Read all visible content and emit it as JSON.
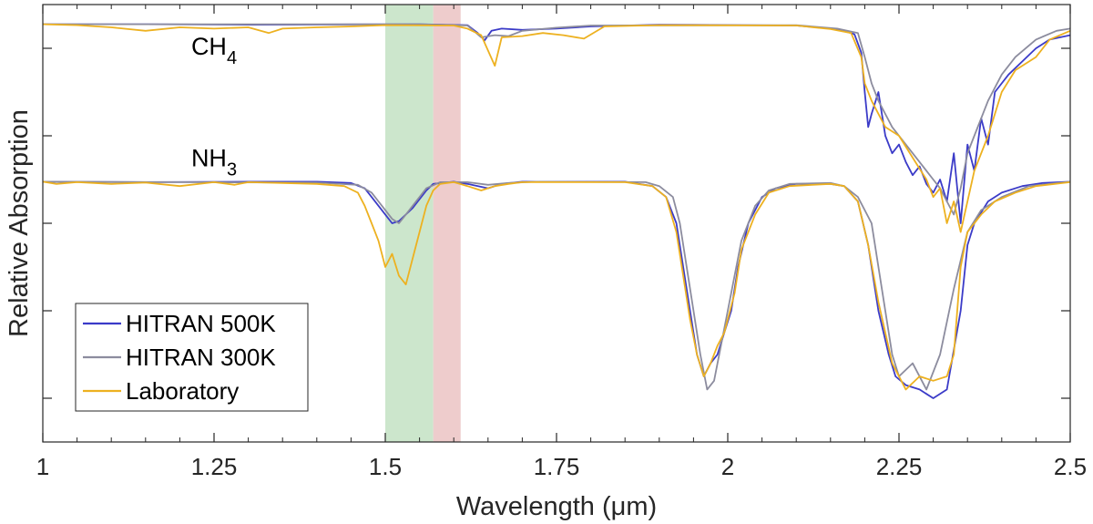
{
  "chart_data": {
    "type": "line",
    "xlabel": "Wavelength (μm)",
    "ylabel": "Relative Absorption",
    "xlim": [
      1.0,
      2.5
    ],
    "ylim": [
      0,
      1
    ],
    "x_ticks": [
      1,
      1.25,
      1.5,
      1.75,
      2,
      2.25,
      2.5
    ],
    "x_tick_labels": [
      "1",
      "1.25",
      "1.5",
      "1.75",
      "2",
      "2.25",
      "2.5"
    ],
    "y_ticks": [
      0.1,
      0.3,
      0.5,
      0.7,
      0.9
    ],
    "y_tick_labels": [
      "",
      "",
      "",
      "",
      ""
    ],
    "shaded_regions": [
      {
        "name": "green-band",
        "x_range": [
          1.5,
          1.57
        ],
        "color": "#cce6cc"
      },
      {
        "name": "red-band",
        "x_range": [
          1.57,
          1.61
        ],
        "color": "#eecccc"
      }
    ],
    "annotations": [
      {
        "name": "ch4",
        "base": "CH",
        "sub": "4",
        "x": 1.25,
        "y": 0.885
      },
      {
        "name": "nh3",
        "base": "NH",
        "sub": "3",
        "x": 1.25,
        "y": 0.63
      }
    ],
    "legend": {
      "position": "lower-left",
      "entries": [
        {
          "label": "HITRAN 500K",
          "color": "#3b3bc8"
        },
        {
          "label": "HITRAN 300K",
          "color": "#8c8c9e"
        },
        {
          "label": "Laboratory",
          "color": "#edb120"
        }
      ]
    },
    "series": [
      {
        "name": "CH4 HITRAN 500K",
        "group": "CH4",
        "color": "#3b3bc8",
        "points": [
          [
            1.0,
            0.955
          ],
          [
            1.15,
            0.955
          ],
          [
            1.3,
            0.954
          ],
          [
            1.55,
            0.955
          ],
          [
            1.62,
            0.953
          ],
          [
            1.635,
            0.935
          ],
          [
            1.645,
            0.918
          ],
          [
            1.655,
            0.94
          ],
          [
            1.67,
            0.945
          ],
          [
            1.7,
            0.942
          ],
          [
            1.75,
            0.945
          ],
          [
            1.8,
            0.95
          ],
          [
            1.9,
            0.954
          ],
          [
            2.1,
            0.952
          ],
          [
            2.15,
            0.945
          ],
          [
            2.17,
            0.94
          ],
          [
            2.185,
            0.932
          ],
          [
            2.195,
            0.89
          ],
          [
            2.2,
            0.8
          ],
          [
            2.205,
            0.72
          ],
          [
            2.21,
            0.75
          ],
          [
            2.22,
            0.8
          ],
          [
            2.23,
            0.7
          ],
          [
            2.24,
            0.66
          ],
          [
            2.25,
            0.68
          ],
          [
            2.26,
            0.64
          ],
          [
            2.27,
            0.61
          ],
          [
            2.28,
            0.63
          ],
          [
            2.29,
            0.59
          ],
          [
            2.3,
            0.57
          ],
          [
            2.31,
            0.6
          ],
          [
            2.32,
            0.55
          ],
          [
            2.33,
            0.66
          ],
          [
            2.34,
            0.5
          ],
          [
            2.35,
            0.68
          ],
          [
            2.36,
            0.62
          ],
          [
            2.37,
            0.74
          ],
          [
            2.38,
            0.68
          ],
          [
            2.39,
            0.8
          ],
          [
            2.41,
            0.84
          ],
          [
            2.43,
            0.87
          ],
          [
            2.45,
            0.9
          ],
          [
            2.47,
            0.92
          ],
          [
            2.5,
            0.93
          ]
        ]
      },
      {
        "name": "CH4 HITRAN 300K",
        "group": "CH4",
        "color": "#8c8c9e",
        "points": [
          [
            1.0,
            0.955
          ],
          [
            1.3,
            0.955
          ],
          [
            1.55,
            0.955
          ],
          [
            1.62,
            0.952
          ],
          [
            1.64,
            0.925
          ],
          [
            1.66,
            0.93
          ],
          [
            1.68,
            0.928
          ],
          [
            1.7,
            0.94
          ],
          [
            1.75,
            0.947
          ],
          [
            1.8,
            0.952
          ],
          [
            2.1,
            0.953
          ],
          [
            2.16,
            0.945
          ],
          [
            2.19,
            0.935
          ],
          [
            2.2,
            0.88
          ],
          [
            2.21,
            0.82
          ],
          [
            2.22,
            0.78
          ],
          [
            2.24,
            0.72
          ],
          [
            2.26,
            0.68
          ],
          [
            2.28,
            0.64
          ],
          [
            2.3,
            0.6
          ],
          [
            2.31,
            0.58
          ],
          [
            2.32,
            0.55
          ],
          [
            2.33,
            0.52
          ],
          [
            2.34,
            0.58
          ],
          [
            2.35,
            0.66
          ],
          [
            2.36,
            0.7
          ],
          [
            2.38,
            0.78
          ],
          [
            2.4,
            0.84
          ],
          [
            2.42,
            0.88
          ],
          [
            2.45,
            0.92
          ],
          [
            2.48,
            0.94
          ],
          [
            2.5,
            0.945
          ]
        ]
      },
      {
        "name": "CH4 Laboratory",
        "group": "CH4",
        "color": "#edb120",
        "points": [
          [
            1.0,
            0.955
          ],
          [
            1.05,
            0.953
          ],
          [
            1.1,
            0.948
          ],
          [
            1.15,
            0.94
          ],
          [
            1.2,
            0.948
          ],
          [
            1.25,
            0.945
          ],
          [
            1.3,
            0.948
          ],
          [
            1.33,
            0.935
          ],
          [
            1.35,
            0.945
          ],
          [
            1.4,
            0.948
          ],
          [
            1.45,
            0.95
          ],
          [
            1.5,
            0.953
          ],
          [
            1.6,
            0.952
          ],
          [
            1.62,
            0.945
          ],
          [
            1.64,
            0.93
          ],
          [
            1.66,
            0.86
          ],
          [
            1.67,
            0.925
          ],
          [
            1.7,
            0.928
          ],
          [
            1.73,
            0.935
          ],
          [
            1.76,
            0.93
          ],
          [
            1.79,
            0.922
          ],
          [
            1.82,
            0.95
          ],
          [
            1.9,
            0.953
          ],
          [
            2.1,
            0.952
          ],
          [
            2.15,
            0.944
          ],
          [
            2.18,
            0.935
          ],
          [
            2.195,
            0.88
          ],
          [
            2.2,
            0.82
          ],
          [
            2.21,
            0.78
          ],
          [
            2.23,
            0.72
          ],
          [
            2.25,
            0.7
          ],
          [
            2.27,
            0.65
          ],
          [
            2.29,
            0.6
          ],
          [
            2.3,
            0.56
          ],
          [
            2.31,
            0.58
          ],
          [
            2.32,
            0.5
          ],
          [
            2.33,
            0.55
          ],
          [
            2.34,
            0.48
          ],
          [
            2.36,
            0.62
          ],
          [
            2.38,
            0.7
          ],
          [
            2.4,
            0.8
          ],
          [
            2.42,
            0.85
          ],
          [
            2.45,
            0.88
          ],
          [
            2.47,
            0.92
          ],
          [
            2.5,
            0.94
          ]
        ]
      },
      {
        "name": "NH3 HITRAN 500K",
        "group": "NH3",
        "color": "#3b3bc8",
        "points": [
          [
            1.0,
            0.595
          ],
          [
            1.15,
            0.594
          ],
          [
            1.3,
            0.595
          ],
          [
            1.4,
            0.595
          ],
          [
            1.45,
            0.592
          ],
          [
            1.47,
            0.58
          ],
          [
            1.48,
            0.56
          ],
          [
            1.49,
            0.54
          ],
          [
            1.5,
            0.52
          ],
          [
            1.51,
            0.5
          ],
          [
            1.52,
            0.505
          ],
          [
            1.53,
            0.52
          ],
          [
            1.54,
            0.535
          ],
          [
            1.55,
            0.555
          ],
          [
            1.56,
            0.575
          ],
          [
            1.57,
            0.59
          ],
          [
            1.6,
            0.595
          ],
          [
            1.62,
            0.59
          ],
          [
            1.65,
            0.58
          ],
          [
            1.67,
            0.59
          ],
          [
            1.7,
            0.595
          ],
          [
            1.85,
            0.595
          ],
          [
            1.89,
            0.585
          ],
          [
            1.91,
            0.56
          ],
          [
            1.925,
            0.5
          ],
          [
            1.935,
            0.4
          ],
          [
            1.945,
            0.3
          ],
          [
            1.955,
            0.2
          ],
          [
            1.965,
            0.15
          ],
          [
            1.975,
            0.18
          ],
          [
            1.985,
            0.2
          ],
          [
            1.995,
            0.25
          ],
          [
            2.005,
            0.3
          ],
          [
            2.015,
            0.4
          ],
          [
            2.03,
            0.5
          ],
          [
            2.05,
            0.56
          ],
          [
            2.07,
            0.58
          ],
          [
            2.1,
            0.59
          ],
          [
            2.15,
            0.59
          ],
          [
            2.17,
            0.585
          ],
          [
            2.19,
            0.55
          ],
          [
            2.205,
            0.45
          ],
          [
            2.22,
            0.3
          ],
          [
            2.235,
            0.2
          ],
          [
            2.245,
            0.15
          ],
          [
            2.26,
            0.13
          ],
          [
            2.28,
            0.12
          ],
          [
            2.3,
            0.1
          ],
          [
            2.32,
            0.12
          ],
          [
            2.34,
            0.3
          ],
          [
            2.35,
            0.45
          ],
          [
            2.36,
            0.5
          ],
          [
            2.38,
            0.55
          ],
          [
            2.4,
            0.57
          ],
          [
            2.43,
            0.585
          ],
          [
            2.46,
            0.592
          ],
          [
            2.5,
            0.595
          ]
        ]
      },
      {
        "name": "NH3 HITRAN 300K",
        "group": "NH3",
        "color": "#8c8c9e",
        "points": [
          [
            1.0,
            0.595
          ],
          [
            1.2,
            0.594
          ],
          [
            1.4,
            0.593
          ],
          [
            1.46,
            0.588
          ],
          [
            1.48,
            0.57
          ],
          [
            1.49,
            0.55
          ],
          [
            1.5,
            0.53
          ],
          [
            1.51,
            0.51
          ],
          [
            1.52,
            0.5
          ],
          [
            1.53,
            0.52
          ],
          [
            1.54,
            0.54
          ],
          [
            1.55,
            0.56
          ],
          [
            1.56,
            0.58
          ],
          [
            1.58,
            0.594
          ],
          [
            1.62,
            0.594
          ],
          [
            1.65,
            0.588
          ],
          [
            1.68,
            0.592
          ],
          [
            1.72,
            0.595
          ],
          [
            1.88,
            0.594
          ],
          [
            1.9,
            0.585
          ],
          [
            1.92,
            0.56
          ],
          [
            1.93,
            0.5
          ],
          [
            1.94,
            0.4
          ],
          [
            1.95,
            0.3
          ],
          [
            1.96,
            0.2
          ],
          [
            1.97,
            0.12
          ],
          [
            1.98,
            0.14
          ],
          [
            1.99,
            0.22
          ],
          [
            2.0,
            0.3
          ],
          [
            2.01,
            0.38
          ],
          [
            2.02,
            0.46
          ],
          [
            2.04,
            0.54
          ],
          [
            2.06,
            0.575
          ],
          [
            2.09,
            0.59
          ],
          [
            2.15,
            0.592
          ],
          [
            2.17,
            0.585
          ],
          [
            2.19,
            0.56
          ],
          [
            2.21,
            0.5
          ],
          [
            2.225,
            0.35
          ],
          [
            2.24,
            0.2
          ],
          [
            2.25,
            0.15
          ],
          [
            2.27,
            0.18
          ],
          [
            2.29,
            0.12
          ],
          [
            2.31,
            0.2
          ],
          [
            2.33,
            0.35
          ],
          [
            2.35,
            0.48
          ],
          [
            2.37,
            0.53
          ],
          [
            2.4,
            0.56
          ],
          [
            2.44,
            0.585
          ],
          [
            2.5,
            0.595
          ]
        ]
      },
      {
        "name": "NH3 Laboratory",
        "group": "NH3",
        "color": "#edb120",
        "points": [
          [
            1.0,
            0.595
          ],
          [
            1.02,
            0.59
          ],
          [
            1.05,
            0.594
          ],
          [
            1.1,
            0.59
          ],
          [
            1.15,
            0.593
          ],
          [
            1.2,
            0.585
          ],
          [
            1.25,
            0.594
          ],
          [
            1.28,
            0.588
          ],
          [
            1.3,
            0.594
          ],
          [
            1.35,
            0.592
          ],
          [
            1.4,
            0.59
          ],
          [
            1.44,
            0.585
          ],
          [
            1.46,
            0.57
          ],
          [
            1.47,
            0.54
          ],
          [
            1.48,
            0.5
          ],
          [
            1.49,
            0.46
          ],
          [
            1.5,
            0.4
          ],
          [
            1.51,
            0.43
          ],
          [
            1.52,
            0.38
          ],
          [
            1.53,
            0.36
          ],
          [
            1.54,
            0.42
          ],
          [
            1.55,
            0.48
          ],
          [
            1.56,
            0.54
          ],
          [
            1.57,
            0.575
          ],
          [
            1.58,
            0.59
          ],
          [
            1.6,
            0.594
          ],
          [
            1.62,
            0.585
          ],
          [
            1.64,
            0.575
          ],
          [
            1.66,
            0.585
          ],
          [
            1.68,
            0.59
          ],
          [
            1.7,
            0.594
          ],
          [
            1.85,
            0.594
          ],
          [
            1.89,
            0.585
          ],
          [
            1.91,
            0.56
          ],
          [
            1.925,
            0.48
          ],
          [
            1.935,
            0.38
          ],
          [
            1.945,
            0.28
          ],
          [
            1.955,
            0.2
          ],
          [
            1.965,
            0.15
          ],
          [
            1.975,
            0.18
          ],
          [
            1.985,
            0.22
          ],
          [
            1.995,
            0.25
          ],
          [
            2.01,
            0.34
          ],
          [
            2.02,
            0.44
          ],
          [
            2.04,
            0.52
          ],
          [
            2.06,
            0.57
          ],
          [
            2.09,
            0.585
          ],
          [
            2.15,
            0.59
          ],
          [
            2.17,
            0.585
          ],
          [
            2.19,
            0.55
          ],
          [
            2.205,
            0.45
          ],
          [
            2.22,
            0.32
          ],
          [
            2.24,
            0.18
          ],
          [
            2.26,
            0.12
          ],
          [
            2.28,
            0.15
          ],
          [
            2.3,
            0.14
          ],
          [
            2.32,
            0.15
          ],
          [
            2.33,
            0.2
          ],
          [
            2.34,
            0.4
          ],
          [
            2.35,
            0.48
          ],
          [
            2.37,
            0.52
          ],
          [
            2.39,
            0.55
          ],
          [
            2.42,
            0.57
          ],
          [
            2.45,
            0.585
          ],
          [
            2.5,
            0.594
          ]
        ]
      }
    ]
  }
}
